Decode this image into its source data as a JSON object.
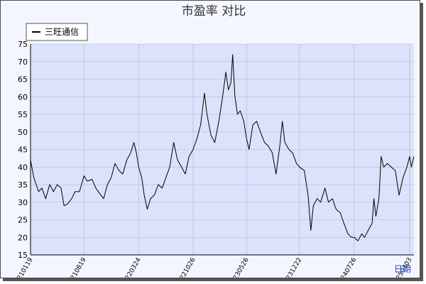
{
  "chart_data": {
    "type": "line",
    "title": "市盈率  对比",
    "xlabel": "日期",
    "ylabel": "",
    "ylim": [
      15,
      75
    ],
    "yticks": [
      15,
      20,
      25,
      30,
      35,
      40,
      45,
      50,
      55,
      60,
      65,
      70,
      75
    ],
    "xtick_labels": [
      "20210119",
      "20210819",
      "20220324",
      "20221026",
      "20230526",
      "20231222",
      "20240726",
      "20250303"
    ],
    "grid": true,
    "legend_position": "top-left",
    "colors": {
      "plot_background": "#dce2f9",
      "line": "#000000",
      "grid": "#aab4e0",
      "frame_background": "#f4f6ff"
    },
    "series": [
      {
        "name": "三旺通信",
        "points": [
          [
            "2021-01-19",
            42
          ],
          [
            "2021-02-01",
            37
          ],
          [
            "2021-02-20",
            33
          ],
          [
            "2021-03-05",
            34
          ],
          [
            "2021-03-20",
            31
          ],
          [
            "2021-04-05",
            35
          ],
          [
            "2021-04-20",
            33
          ],
          [
            "2021-05-05",
            35
          ],
          [
            "2021-05-20",
            34
          ],
          [
            "2021-06-01",
            29
          ],
          [
            "2021-06-15",
            29.5
          ],
          [
            "2021-07-01",
            31
          ],
          [
            "2021-07-15",
            33
          ],
          [
            "2021-08-01",
            33
          ],
          [
            "2021-08-19",
            37.5
          ],
          [
            "2021-09-01",
            36
          ],
          [
            "2021-09-20",
            36.5
          ],
          [
            "2021-10-05",
            34
          ],
          [
            "2021-10-20",
            32.5
          ],
          [
            "2021-11-05",
            31
          ],
          [
            "2021-11-20",
            35
          ],
          [
            "2021-12-05",
            37
          ],
          [
            "2021-12-20",
            41
          ],
          [
            "2022-01-05",
            39
          ],
          [
            "2022-01-20",
            38
          ],
          [
            "2022-02-05",
            42
          ],
          [
            "2022-02-20",
            44
          ],
          [
            "2022-03-05",
            47
          ],
          [
            "2022-03-15",
            44
          ],
          [
            "2022-03-24",
            40
          ],
          [
            "2022-04-05",
            37
          ],
          [
            "2022-04-15",
            32
          ],
          [
            "2022-04-27",
            28
          ],
          [
            "2022-05-10",
            31
          ],
          [
            "2022-05-25",
            32
          ],
          [
            "2022-06-10",
            35
          ],
          [
            "2022-06-25",
            34
          ],
          [
            "2022-07-10",
            37
          ],
          [
            "2022-07-25",
            40
          ],
          [
            "2022-08-10",
            47
          ],
          [
            "2022-08-25",
            42
          ],
          [
            "2022-09-10",
            40
          ],
          [
            "2022-09-25",
            38
          ],
          [
            "2022-10-10",
            43
          ],
          [
            "2022-10-26",
            45
          ],
          [
            "2022-11-10",
            48
          ],
          [
            "2022-11-25",
            52
          ],
          [
            "2022-12-10",
            61
          ],
          [
            "2022-12-20",
            55
          ],
          [
            "2023-01-05",
            49
          ],
          [
            "2023-01-20",
            47
          ],
          [
            "2023-02-05",
            53
          ],
          [
            "2023-02-20",
            60
          ],
          [
            "2023-03-05",
            67
          ],
          [
            "2023-03-15",
            62
          ],
          [
            "2023-03-25",
            64
          ],
          [
            "2023-04-01",
            72
          ],
          [
            "2023-04-10",
            60
          ],
          [
            "2023-04-20",
            55
          ],
          [
            "2023-05-01",
            56
          ],
          [
            "2023-05-15",
            53
          ],
          [
            "2023-05-26",
            48
          ],
          [
            "2023-06-05",
            45
          ],
          [
            "2023-06-20",
            52
          ],
          [
            "2023-07-05",
            53
          ],
          [
            "2023-07-20",
            50
          ],
          [
            "2023-08-05",
            47
          ],
          [
            "2023-08-20",
            46
          ],
          [
            "2023-09-05",
            44
          ],
          [
            "2023-09-20",
            38
          ],
          [
            "2023-10-05",
            46
          ],
          [
            "2023-10-15",
            53
          ],
          [
            "2023-10-25",
            47
          ],
          [
            "2023-11-10",
            45
          ],
          [
            "2023-11-25",
            44
          ],
          [
            "2023-12-10",
            41
          ],
          [
            "2023-12-22",
            40
          ],
          [
            "2024-01-10",
            39
          ],
          [
            "2024-01-25",
            32
          ],
          [
            "2024-02-05",
            22
          ],
          [
            "2024-02-15",
            29
          ],
          [
            "2024-03-01",
            31
          ],
          [
            "2024-03-15",
            30
          ],
          [
            "2024-04-01",
            34
          ],
          [
            "2024-04-15",
            30
          ],
          [
            "2024-05-01",
            31
          ],
          [
            "2024-05-15",
            28
          ],
          [
            "2024-06-01",
            27
          ],
          [
            "2024-06-15",
            24
          ],
          [
            "2024-07-01",
            21
          ],
          [
            "2024-07-15",
            20
          ],
          [
            "2024-07-26",
            20
          ],
          [
            "2024-08-10",
            19
          ],
          [
            "2024-08-25",
            21
          ],
          [
            "2024-09-05",
            20
          ],
          [
            "2024-09-20",
            22
          ],
          [
            "2024-10-05",
            24
          ],
          [
            "2024-10-12",
            31
          ],
          [
            "2024-10-20",
            26
          ],
          [
            "2024-11-01",
            31
          ],
          [
            "2024-11-10",
            43
          ],
          [
            "2024-11-20",
            40
          ],
          [
            "2024-12-05",
            41
          ],
          [
            "2024-12-20",
            40
          ],
          [
            "2025-01-05",
            39
          ],
          [
            "2025-01-20",
            32
          ],
          [
            "2025-02-05",
            37
          ],
          [
            "2025-02-20",
            40
          ],
          [
            "2025-03-03",
            43
          ],
          [
            "2025-03-10",
            40
          ],
          [
            "2025-03-20",
            43
          ]
        ]
      }
    ]
  }
}
